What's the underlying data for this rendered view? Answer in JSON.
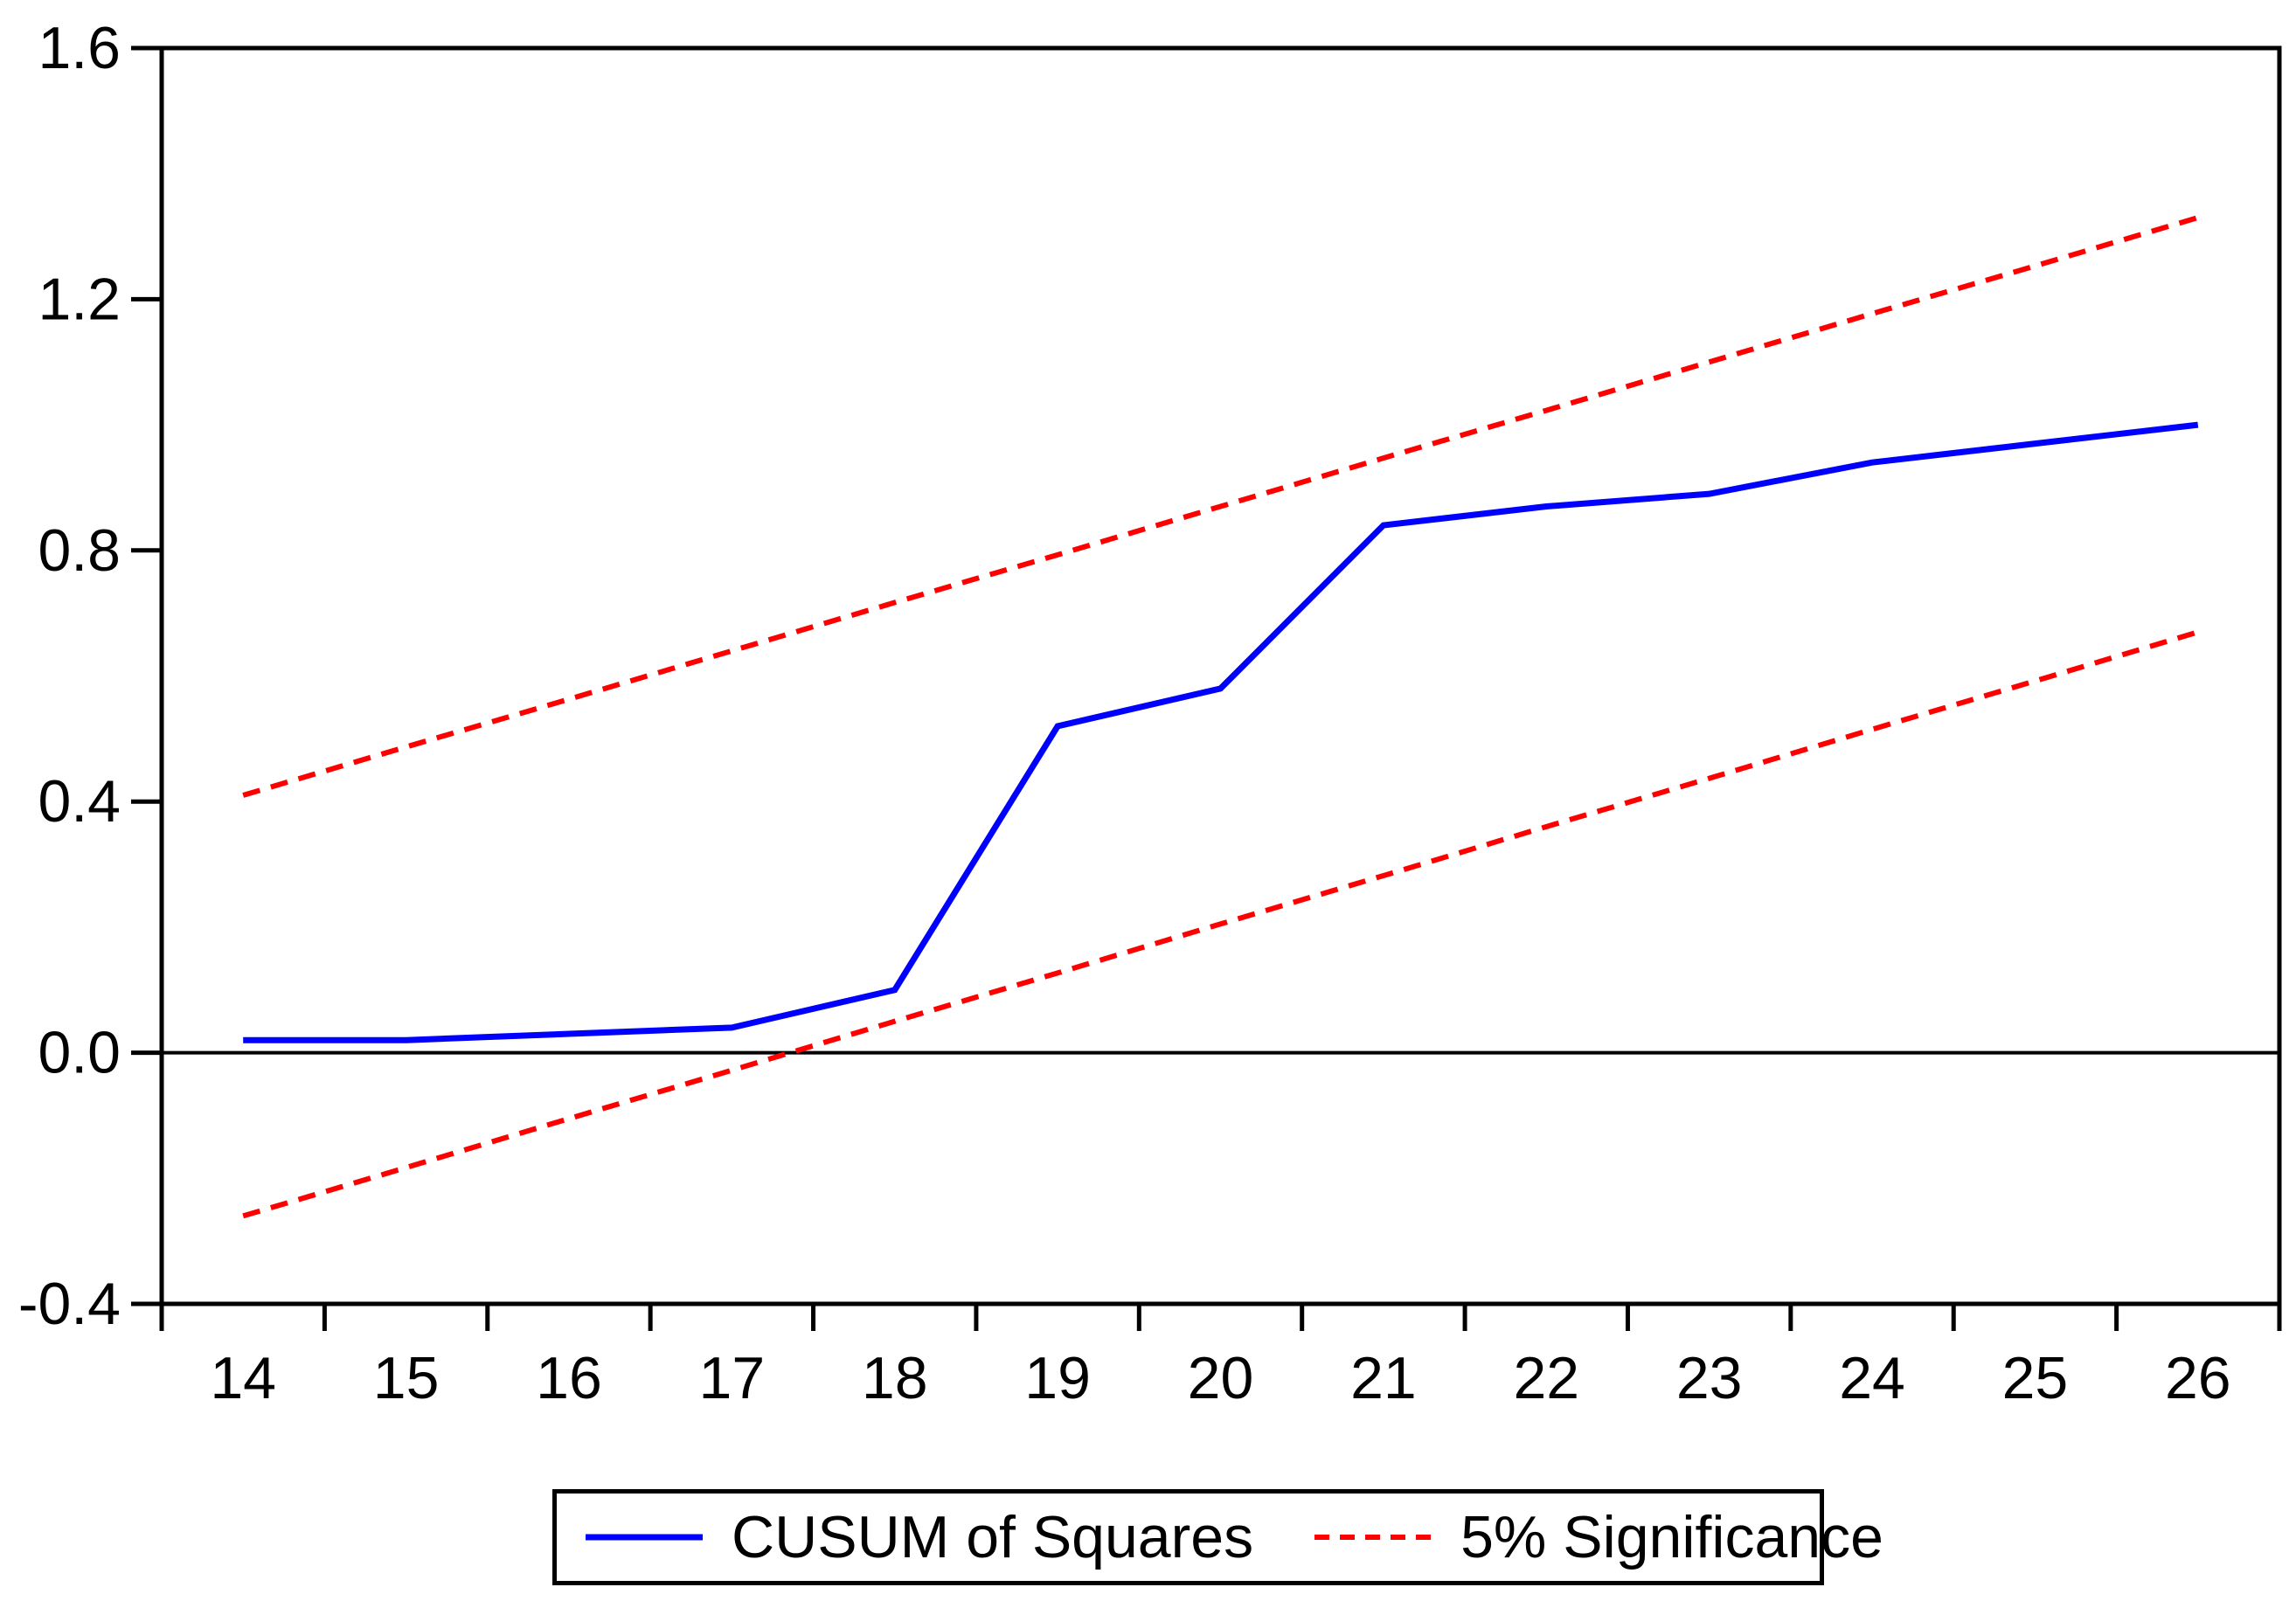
{
  "chart_data": {
    "type": "line",
    "title": "",
    "xlabel": "",
    "ylabel": "",
    "x": [
      14,
      15,
      16,
      17,
      18,
      19,
      20,
      21,
      22,
      23,
      24,
      25,
      26
    ],
    "series": [
      {
        "name": "CUSUM of Squares",
        "color": "#0000ff",
        "line_style": "solid",
        "values": [
          0.02,
          0.02,
          0.03,
          0.04,
          0.1,
          0.52,
          0.58,
          0.84,
          0.87,
          0.89,
          0.94,
          0.97,
          1.0
        ]
      },
      {
        "name": "5% Significance (upper bound)",
        "color": "#ff0000",
        "line_style": "dashed",
        "values": [
          0.41,
          0.487,
          0.563,
          0.64,
          0.717,
          0.793,
          0.87,
          0.947,
          1.023,
          1.1,
          1.177,
          1.253,
          1.33
        ]
      },
      {
        "name": "5% Significance (lower bound)",
        "color": "#ff0000",
        "line_style": "dashed",
        "values": [
          -0.26,
          -0.183,
          -0.105,
          -0.028,
          0.05,
          0.127,
          0.205,
          0.282,
          0.36,
          0.437,
          0.515,
          0.592,
          0.67
        ]
      }
    ],
    "xlim": [
      13.5,
      26.5
    ],
    "ylim": [
      -0.4,
      1.6
    ],
    "xtick_labels": [
      "14",
      "15",
      "16",
      "17",
      "18",
      "19",
      "20",
      "21",
      "22",
      "23",
      "24",
      "25",
      "26"
    ],
    "yticks": [
      -0.4,
      0.0,
      0.4,
      0.8,
      1.2,
      1.6
    ],
    "ytick_labels": [
      "-0.4",
      "0.0",
      "0.4",
      "0.8",
      "1.2",
      "1.6"
    ],
    "zero_line": 0.0,
    "grid": false,
    "legend_position": "bottom-center",
    "axis_color": "#000000",
    "background": "#ffffff"
  },
  "legend": {
    "entries": [
      {
        "label": "CUSUM of Squares",
        "color": "#0000ff",
        "line_style": "solid"
      },
      {
        "label": "5% Significance",
        "color": "#ff0000",
        "line_style": "dashed"
      }
    ]
  }
}
